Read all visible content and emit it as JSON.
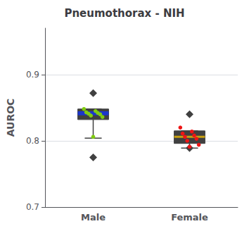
{
  "chart_data": {
    "type": "box",
    "title": "Pneumothorax - NIH",
    "ylabel": "AUROC",
    "categories": [
      "Male",
      "Female"
    ],
    "ylim": [
      0.7,
      0.97
    ],
    "yticks": [
      0.7,
      0.8,
      0.9
    ],
    "grid": true,
    "boxes": [
      {
        "q1": 0.832,
        "q3": 0.848,
        "whisker_low": 0.804,
        "whisker_high": 0.848,
        "color": "#404040",
        "medians": {
          "values": [
            0.84,
            0.843
          ],
          "color": "#1a35cc"
        },
        "dots": {
          "values": [
            0.848,
            0.845,
            0.843,
            0.842,
            0.841,
            0.84,
            0.838,
            0.836,
            0.806
          ],
          "color": "#80cc10",
          "marker": "circle"
        },
        "diamonds": {
          "values": [
            0.872,
            0.775
          ],
          "color": "#404040",
          "marker": "diamond"
        }
      },
      {
        "q1": 0.796,
        "q3": 0.815,
        "whisker_low": 0.789,
        "whisker_high": 0.815,
        "color": "#404040",
        "medians": {
          "values": [
            0.806
          ],
          "color": "#c8a010"
        },
        "dots": {
          "values": [
            0.82,
            0.814,
            0.811,
            0.808,
            0.806,
            0.803,
            0.8,
            0.794,
            0.791
          ],
          "color": "#ee1515",
          "marker": "circle"
        },
        "diamonds": {
          "values": [
            0.84,
            0.789
          ],
          "color": "#404040",
          "marker": "diamond"
        }
      }
    ]
  }
}
